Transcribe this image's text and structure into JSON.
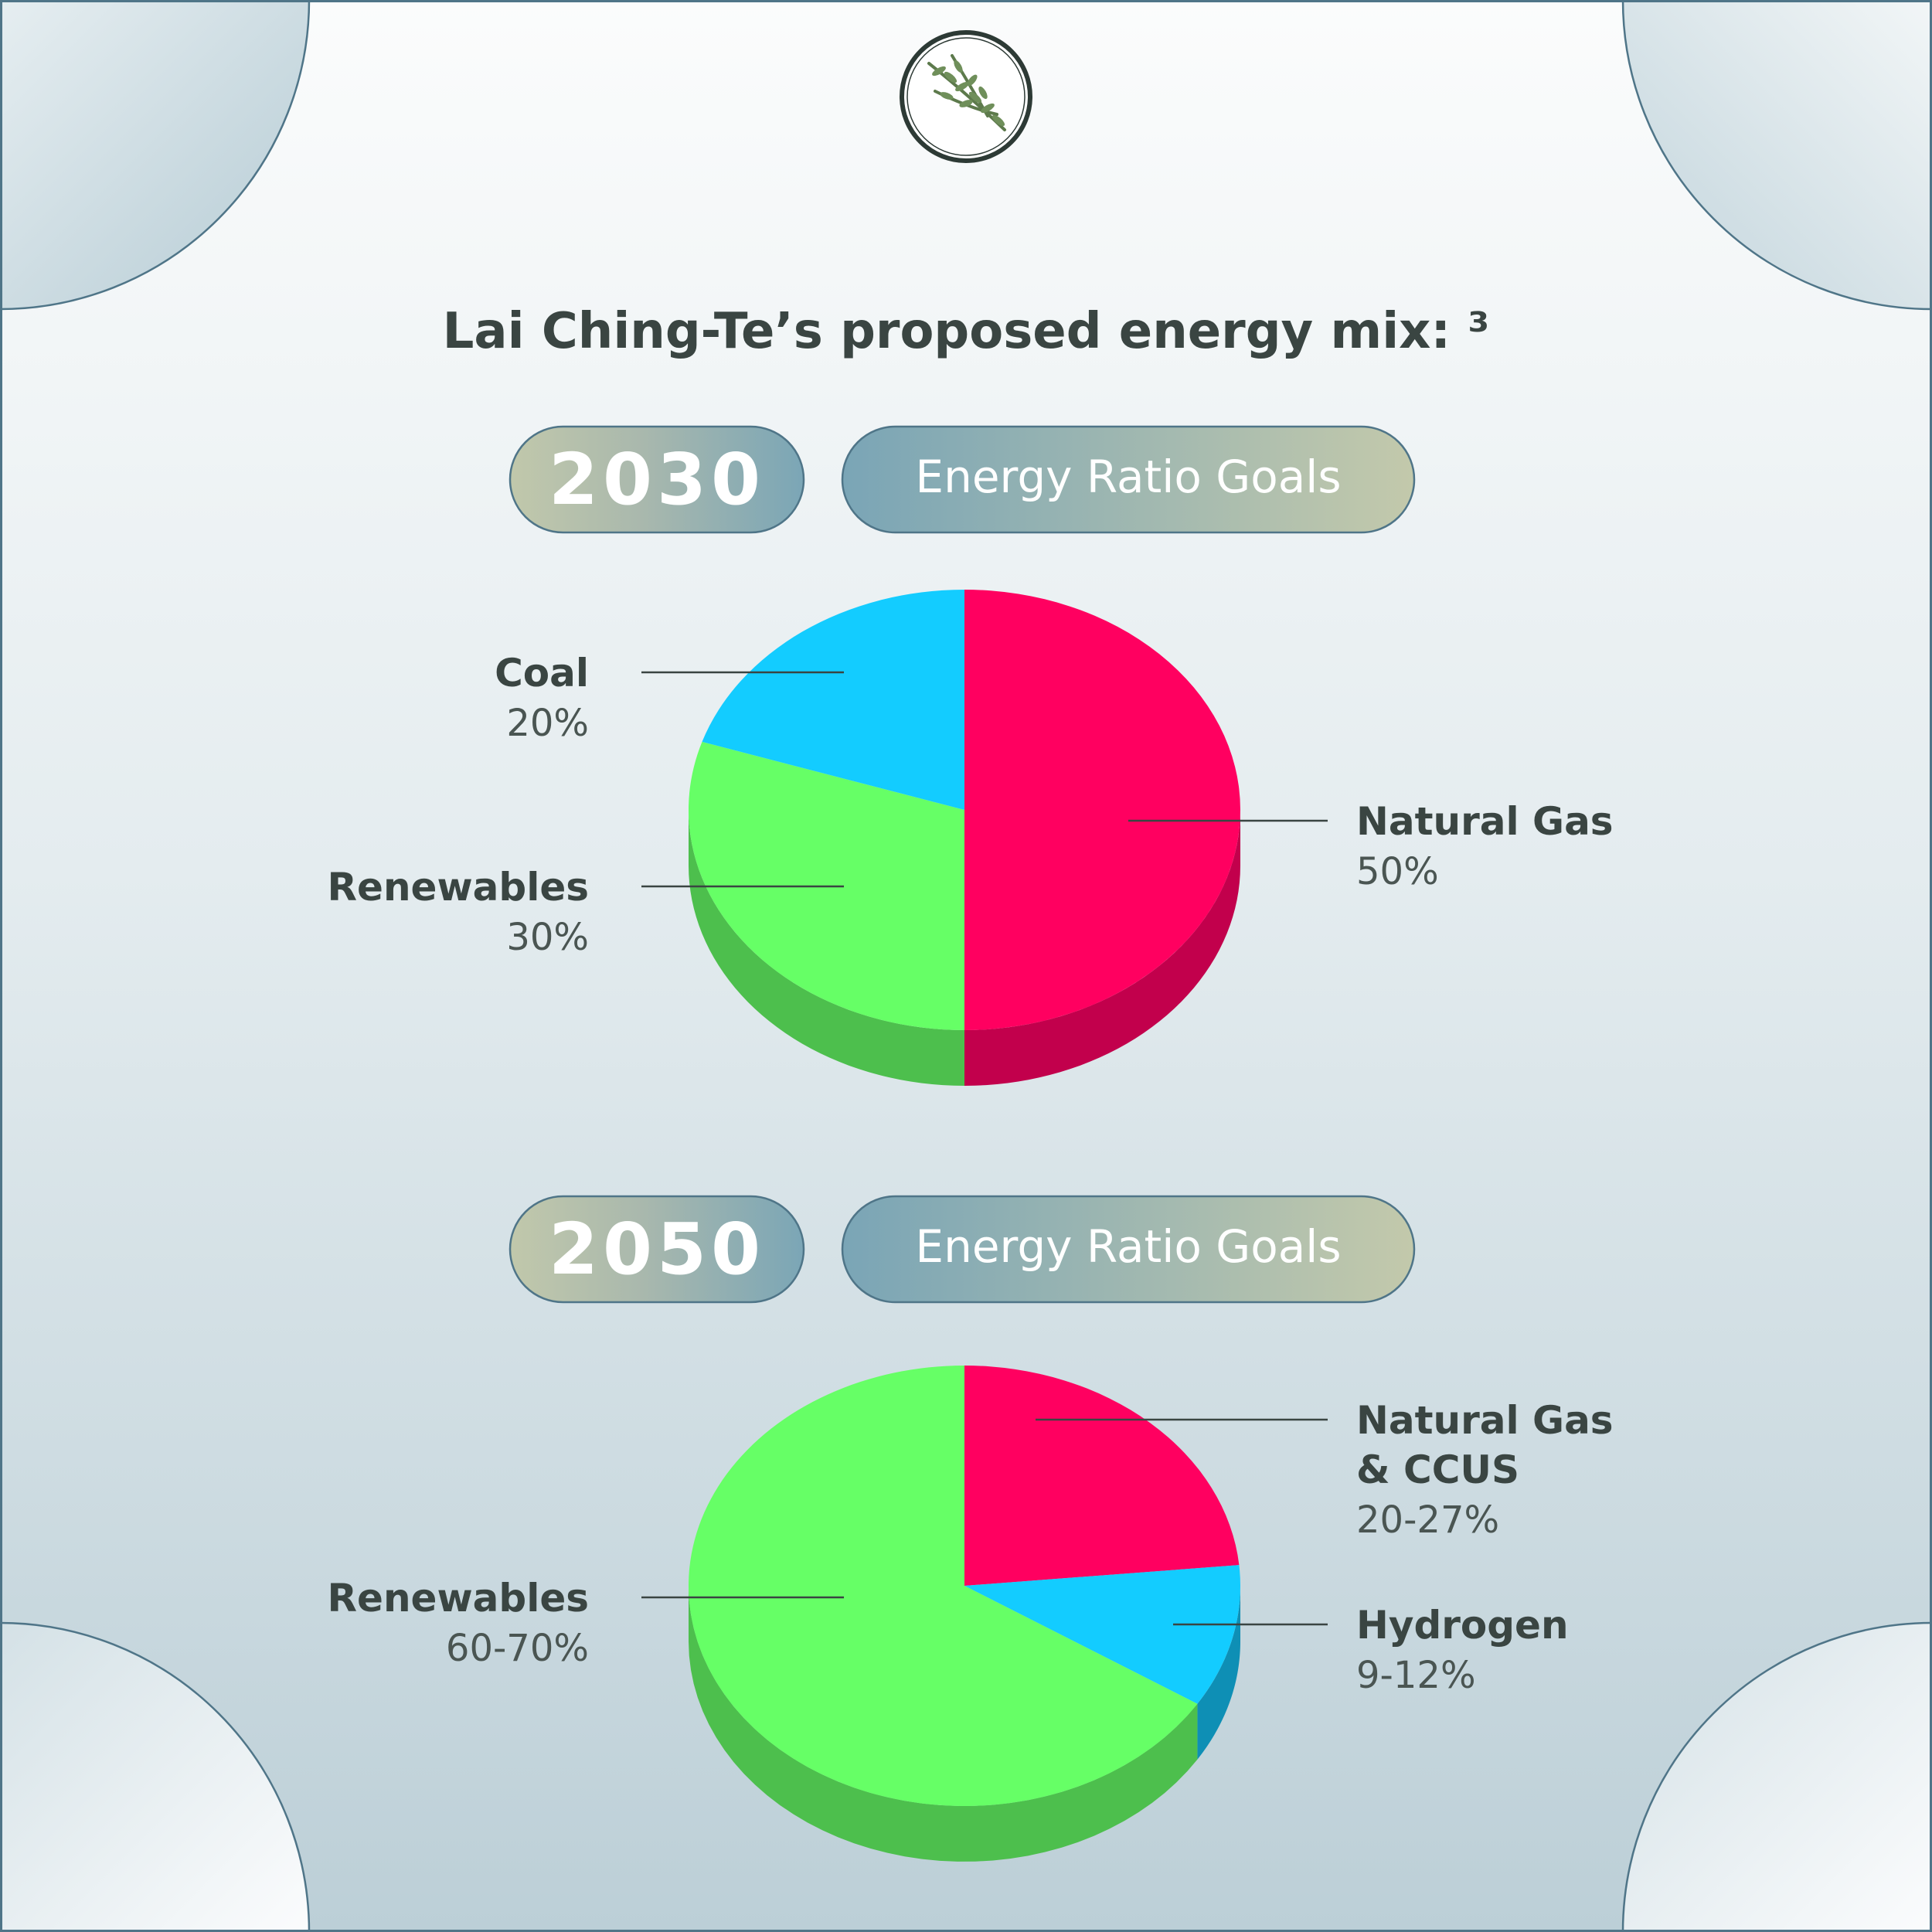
{
  "title": "Lai Ching-Te’s proposed energy mix: ³",
  "badges": [
    {
      "year": "2030",
      "label": "Energy Ratio Goals"
    },
    {
      "year": "2050",
      "label": "Energy Ratio Goals"
    }
  ],
  "icons": [
    "sprig-logo-icon"
  ],
  "colors": {
    "natural_gas": "#ff0060",
    "coal_hydrogen": "#13ccff",
    "renewables": "#66ff66",
    "text": "#3a4542"
  },
  "chart_data": [
    {
      "type": "pie",
      "year": "2030",
      "series": [
        {
          "name": "Natural Gas",
          "label_lines": [
            "Natural Gas"
          ],
          "value_label": "50%",
          "value": 50,
          "color": "#ff0060",
          "side_color": "#c2004c"
        },
        {
          "name": "Renewables",
          "label_lines": [
            "Renewables"
          ],
          "value_label": "30%",
          "value": 30,
          "color": "#66ff66",
          "side_color": "#4dbf4d"
        },
        {
          "name": "Coal",
          "label_lines": [
            "Coal"
          ],
          "value_label": "20%",
          "value": 20,
          "color": "#13ccff",
          "side_color": "#0ea0c8"
        }
      ]
    },
    {
      "type": "pie",
      "year": "2050",
      "series": [
        {
          "name": "Natural Gas & CCUS",
          "label_lines": [
            "Natural Gas",
            "& CCUS"
          ],
          "value_label": "20-27%",
          "value": 23.5,
          "color": "#ff0060",
          "side_color": "#c2004c"
        },
        {
          "name": "Hydrogen",
          "label_lines": [
            "Hydrogen"
          ],
          "value_label": "9-12%",
          "value": 10.5,
          "color": "#13ccff",
          "side_color": "#0e8fb5"
        },
        {
          "name": "Renewables",
          "label_lines": [
            "Renewables"
          ],
          "value_label": "60-70%",
          "value": 66,
          "color": "#66ff66",
          "side_color": "#4dbf4d"
        }
      ]
    }
  ]
}
